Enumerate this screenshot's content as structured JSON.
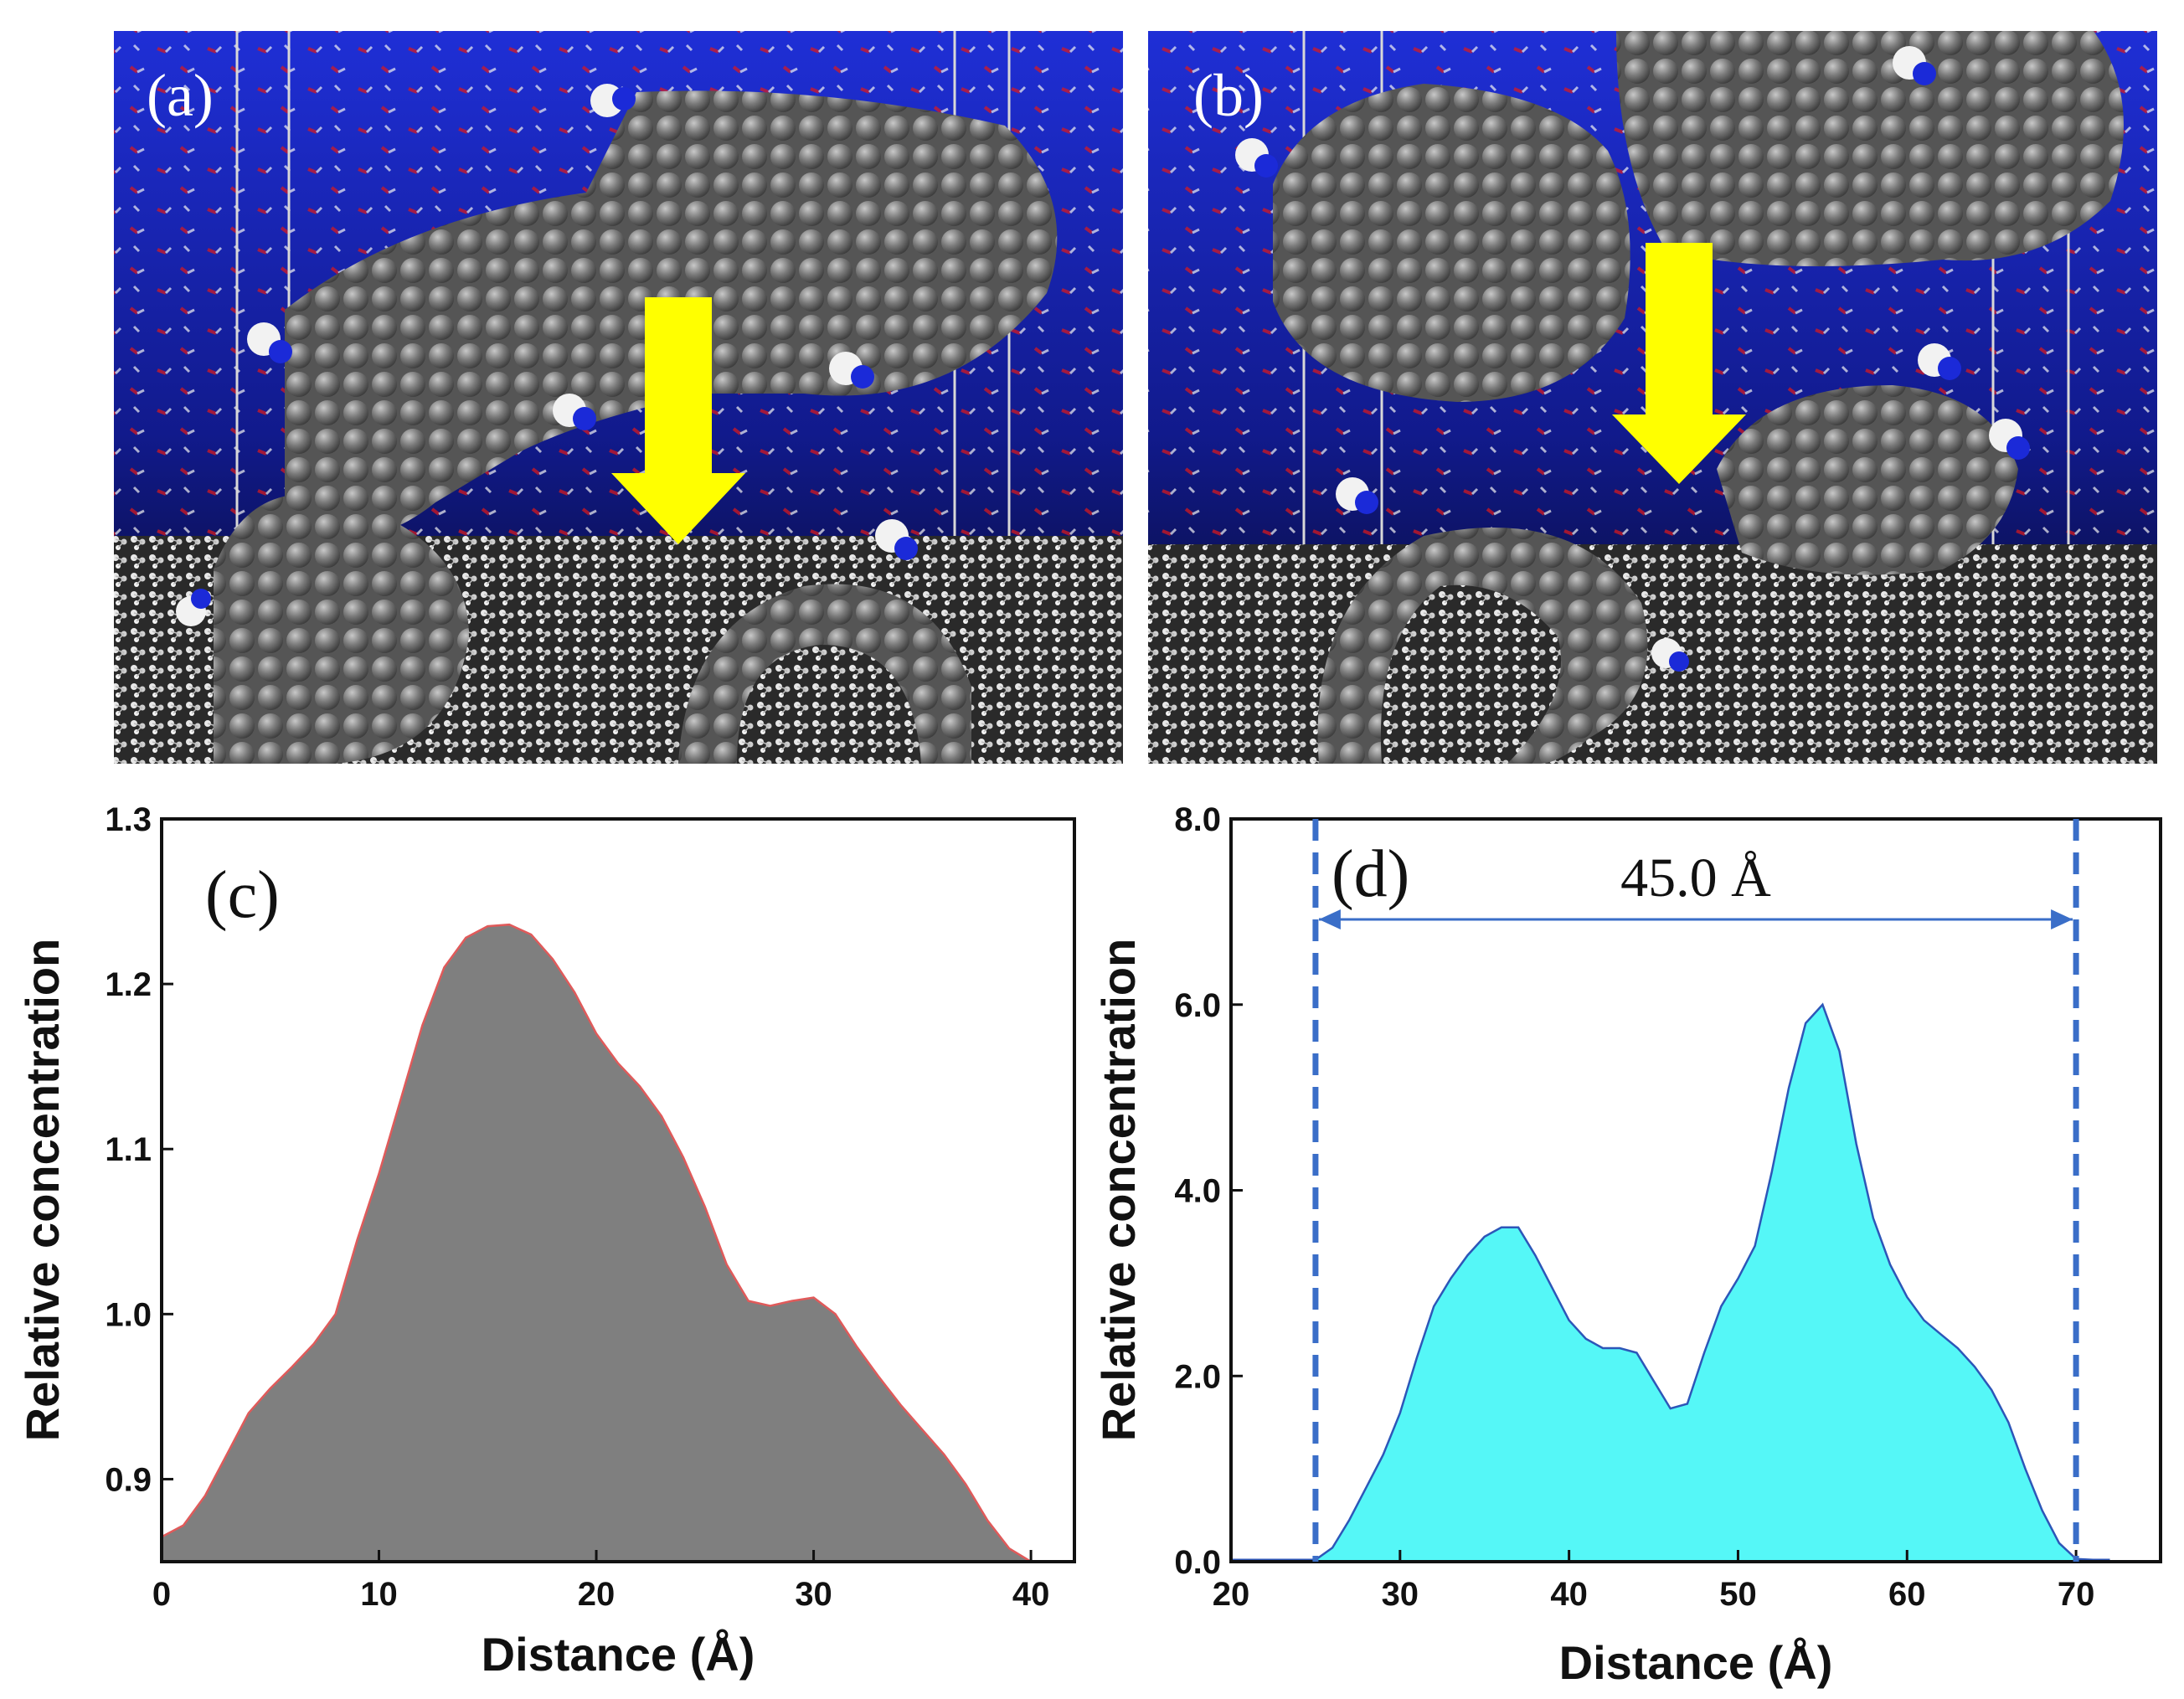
{
  "figure": {
    "panels": [
      "(a)",
      "(b)",
      "(c)",
      "(d)"
    ],
    "snapshot_colors": {
      "bg_top": "#1f2fd6",
      "bg_bottom": "#05061a",
      "carbon": "#7a7a7a",
      "arrow": "#ffff00",
      "oxygen": "#e01818",
      "nitrogen": "#1b2ad8",
      "hydrogen": "#f2f2f2"
    }
  },
  "chart_data": [
    {
      "panel": "(c)",
      "type": "area",
      "title": "",
      "xlabel": "Distance (Å)",
      "ylabel": "Relative concentration",
      "xlim": [
        0,
        42
      ],
      "ylim": [
        0.85,
        1.3
      ],
      "xticks": [
        0,
        10,
        20,
        30,
        40
      ],
      "xtick_labels": [
        "0",
        "10",
        "20",
        "30",
        "40"
      ],
      "yticks": [
        0.9,
        1.0,
        1.1,
        1.2,
        1.3
      ],
      "ytick_labels": [
        "0.9",
        "1.0",
        "1.1",
        "1.2",
        "1.3"
      ],
      "fill_color": "#7f7f7f",
      "line_color": "#e05a5a",
      "series": [
        {
          "name": "concentration",
          "x": [
            0,
            1,
            2,
            3,
            4,
            5,
            6,
            7,
            8,
            9,
            10,
            11,
            12,
            13,
            14,
            15,
            16,
            17,
            18,
            19,
            20,
            21,
            22,
            23,
            24,
            25,
            26,
            27,
            28,
            29,
            30,
            31,
            32,
            33,
            34,
            35,
            36,
            37,
            38,
            39,
            40
          ],
          "y": [
            0.865,
            0.872,
            0.89,
            0.915,
            0.94,
            0.955,
            0.968,
            0.982,
            1.0,
            1.045,
            1.085,
            1.13,
            1.175,
            1.21,
            1.228,
            1.235,
            1.236,
            1.23,
            1.215,
            1.195,
            1.17,
            1.152,
            1.138,
            1.12,
            1.095,
            1.065,
            1.03,
            1.008,
            1.005,
            1.008,
            1.01,
            1.0,
            0.98,
            0.962,
            0.945,
            0.93,
            0.915,
            0.897,
            0.875,
            0.858,
            0.85
          ]
        }
      ]
    },
    {
      "panel": "(d)",
      "type": "area",
      "title": "",
      "xlabel": "Distance (Å)",
      "ylabel": "Relative concentration",
      "xlim": [
        20,
        75
      ],
      "ylim": [
        0,
        8
      ],
      "xticks": [
        20,
        30,
        40,
        50,
        60,
        70
      ],
      "xtick_labels": [
        "20",
        "30",
        "40",
        "50",
        "60",
        "70"
      ],
      "yticks": [
        0,
        2,
        4,
        6,
        8
      ],
      "ytick_labels": [
        "0.0",
        "2.0",
        "4.0",
        "6.0",
        "8.0"
      ],
      "fill_color": "#55f7f7",
      "line_color": "#2d56b8",
      "dashed_vlines": [
        25,
        70
      ],
      "dimension": {
        "from": 25,
        "to": 70,
        "label": "45.0 Å"
      },
      "series": [
        {
          "name": "concentration",
          "x": [
            20,
            25,
            26,
            27,
            28,
            29,
            30,
            31,
            32,
            33,
            34,
            35,
            36,
            37,
            38,
            39,
            40,
            41,
            42,
            43,
            44,
            45,
            46,
            47,
            48,
            49,
            50,
            51,
            52,
            53,
            54,
            55,
            56,
            57,
            58,
            59,
            60,
            61,
            62,
            63,
            64,
            65,
            66,
            67,
            68,
            69,
            70,
            71,
            72
          ],
          "y": [
            0.02,
            0.02,
            0.15,
            0.45,
            0.8,
            1.15,
            1.6,
            2.2,
            2.75,
            3.05,
            3.3,
            3.5,
            3.6,
            3.6,
            3.3,
            2.95,
            2.6,
            2.4,
            2.3,
            2.3,
            2.25,
            1.95,
            1.65,
            1.7,
            2.25,
            2.75,
            3.05,
            3.4,
            4.2,
            5.1,
            5.8,
            6.0,
            5.5,
            4.5,
            3.7,
            3.2,
            2.85,
            2.6,
            2.45,
            2.3,
            2.1,
            1.85,
            1.5,
            1.0,
            0.55,
            0.2,
            0.03,
            0.02,
            0.02
          ]
        }
      ]
    }
  ]
}
